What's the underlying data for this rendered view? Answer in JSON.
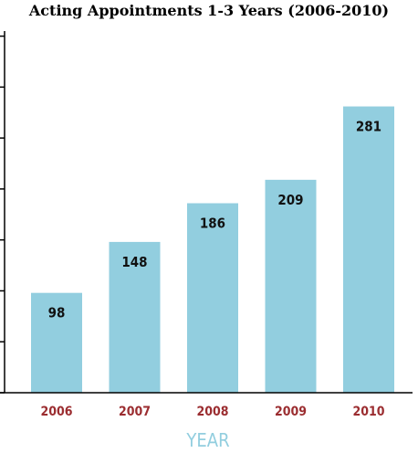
{
  "chart_data": {
    "type": "bar",
    "title": "Acting Appointments 1-3 Years (2006-2010)",
    "categories": [
      "2006",
      "2007",
      "2008",
      "2009",
      "2010"
    ],
    "values": [
      98,
      148,
      186,
      209,
      281
    ],
    "xlabel": "YEAR",
    "ylabel": "",
    "ylim": [
      0,
      355
    ],
    "yticks": [
      0,
      50,
      100,
      150,
      200,
      250,
      300,
      350
    ],
    "grid": false,
    "data_labels": true,
    "colors": {
      "bar": "#92cedf",
      "tick_label": "#9b2d30",
      "axis_title": "#92cedf",
      "axis_line": "#000000"
    }
  }
}
